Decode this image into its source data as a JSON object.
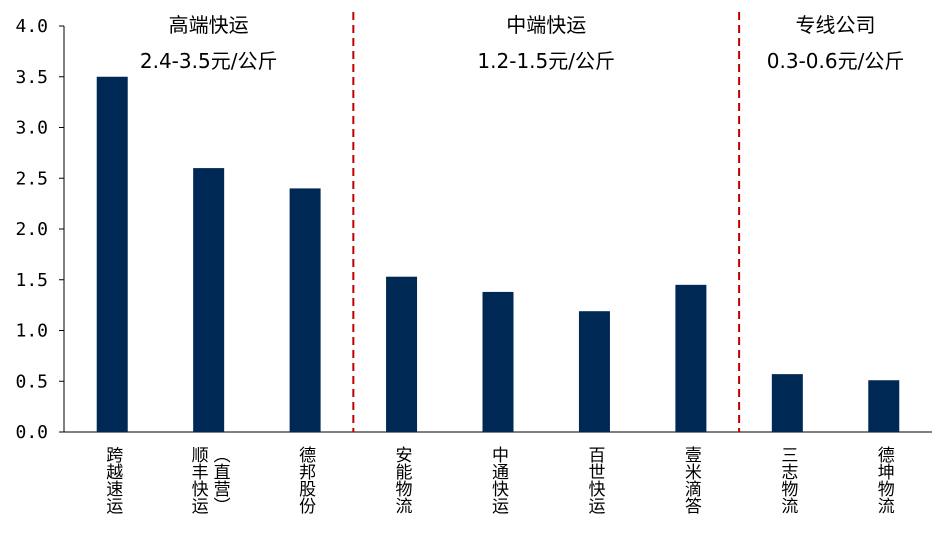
{
  "chart_data": {
    "type": "bar",
    "categories": [
      "跨越速运",
      "顺丰快运（直营）",
      "德邦股份",
      "安能物流",
      "中通快运",
      "百世快运",
      "壹米滴答",
      "三志物流",
      "德坤物流"
    ],
    "category_lines": [
      [
        "跨越速运"
      ],
      [
        "顺丰快运",
        "（直营）"
      ],
      [
        "德邦股份"
      ],
      [
        "安能物流"
      ],
      [
        "中通快运"
      ],
      [
        "百世快运"
      ],
      [
        "壹米滴答"
      ],
      [
        "三志物流"
      ],
      [
        "德坤物流"
      ]
    ],
    "values": [
      3.5,
      2.6,
      2.4,
      1.53,
      1.38,
      1.19,
      1.45,
      0.57,
      0.51
    ],
    "ylim": [
      0,
      4.0
    ],
    "yticks": [
      "0.0",
      "0.5",
      "1.0",
      "1.5",
      "2.0",
      "2.5",
      "3.0",
      "3.5",
      "4.0"
    ],
    "grid": false,
    "bar_color": "#002855",
    "divider_color": "#c00000",
    "groups": [
      {
        "title": "高端快运",
        "range": "2.4-3.5元/公斤",
        "start": 0,
        "end": 2
      },
      {
        "title": "中端快运",
        "range": "1.2-1.5元/公斤",
        "start": 3,
        "end": 6
      },
      {
        "title": "专线公司",
        "range": "0.3-0.6元/公斤",
        "start": 7,
        "end": 8
      }
    ]
  }
}
